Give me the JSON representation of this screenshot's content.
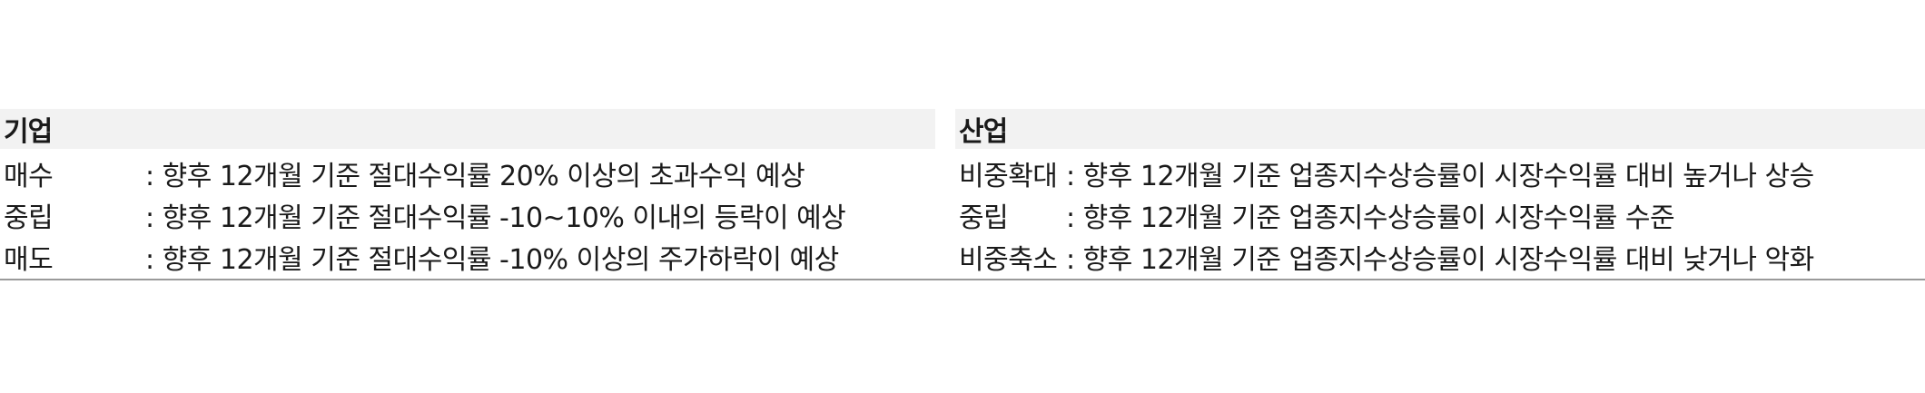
{
  "company": {
    "title": "기업",
    "rows": [
      {
        "label": "매수",
        "desc": ": 향후 12개월 기준 절대수익률 20% 이상의 초과수익 예상"
      },
      {
        "label": "중립",
        "desc": ": 향후 12개월 기준 절대수익률 -10~10% 이내의 등락이 예상"
      },
      {
        "label": "매도",
        "desc": ": 향후 12개월 기준 절대수익률 -10% 이상의 주가하락이 예상"
      }
    ]
  },
  "industry": {
    "title": "산업",
    "rows": [
      {
        "label": "비중확대",
        "desc": ": 향후 12개월 기준 업종지수상승률이 시장수익률 대비 높거나 상승"
      },
      {
        "label": "중립",
        "desc": ": 향후 12개월 기준 업종지수상승률이 시장수익률 수준"
      },
      {
        "label": "비중축소",
        "desc": ": 향후 12개월 기준 업종지수상승률이 시장수익률 대비 낮거나 악화"
      }
    ]
  }
}
